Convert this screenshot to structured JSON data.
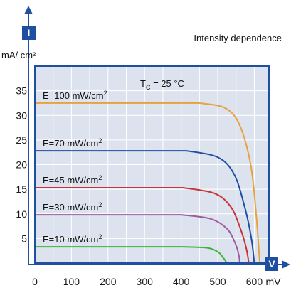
{
  "chart_data": {
    "type": "line",
    "title": "Intensity dependence",
    "axis_badges": {
      "y": "I",
      "x": "V"
    },
    "ylabel": "mA/ cm²",
    "xunit": "mV",
    "annotation": {
      "text_main": "T",
      "text_sub": "C",
      "text_rest": " = 25 °C"
    },
    "xlim": [
      0,
      640
    ],
    "ylim": [
      0,
      40
    ],
    "x_ticks": [
      "0",
      "100",
      "200",
      "300",
      "400",
      "500",
      "600"
    ],
    "y_ticks": [
      "5",
      "10",
      "15",
      "20",
      "25",
      "30",
      "35"
    ],
    "grid": true,
    "series": [
      {
        "name": "E=100 mW/cm2",
        "label_main": "E=100 mW/cm",
        "label_sup": "2",
        "color": "#e8a13c",
        "isc": 32.5,
        "voc": 615,
        "points": [
          [
            0,
            32.5
          ],
          [
            450,
            32.5
          ],
          [
            520,
            31.5
          ],
          [
            560,
            28
          ],
          [
            590,
            20
          ],
          [
            605,
            10
          ],
          [
            615,
            0
          ]
        ]
      },
      {
        "name": "E=70 mW/cm2",
        "label_main": "E=70 mW/cm",
        "label_sup": "2",
        "color": "#1f4fa0",
        "isc": 22.8,
        "voc": 600,
        "points": [
          [
            0,
            22.8
          ],
          [
            415,
            22.8
          ],
          [
            500,
            21.5
          ],
          [
            545,
            18
          ],
          [
            575,
            11
          ],
          [
            592,
            5
          ],
          [
            600,
            0
          ]
        ]
      },
      {
        "name": "E=45 mW/cm2",
        "label_main": "E=45 mW/cm",
        "label_sup": "2",
        "color": "#c8323c",
        "isc": 15.3,
        "voc": 585,
        "points": [
          [
            0,
            15.3
          ],
          [
            405,
            15.3
          ],
          [
            490,
            14.2
          ],
          [
            535,
            11.5
          ],
          [
            562,
            7
          ],
          [
            578,
            3
          ],
          [
            585,
            0
          ]
        ]
      },
      {
        "name": "E=30 mW/cm2",
        "label_main": "E=30 mW/cm",
        "label_sup": "2",
        "color": "#a05aa0",
        "isc": 9.8,
        "voc": 560,
        "points": [
          [
            0,
            9.8
          ],
          [
            400,
            9.8
          ],
          [
            480,
            9
          ],
          [
            525,
            7
          ],
          [
            548,
            4
          ],
          [
            558,
            1.5
          ],
          [
            560,
            0
          ]
        ]
      },
      {
        "name": "E=10 mW/cm2",
        "label_main": "E=10 mW/cm",
        "label_sup": "2",
        "color": "#3cb43c",
        "isc": 3.3,
        "voc": 525,
        "points": [
          [
            0,
            3.3
          ],
          [
            405,
            3.3
          ],
          [
            470,
            3.1
          ],
          [
            500,
            2.3
          ],
          [
            515,
            1.1
          ],
          [
            525,
            0
          ]
        ]
      }
    ]
  }
}
